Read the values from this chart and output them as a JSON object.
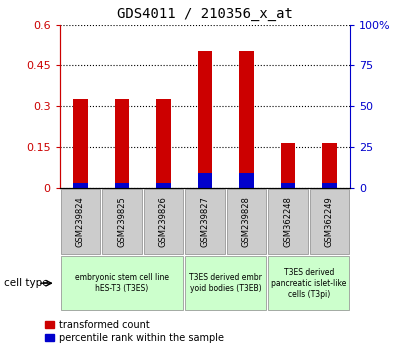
{
  "title": "GDS4011 / 210356_x_at",
  "samples": [
    "GSM239824",
    "GSM239825",
    "GSM239826",
    "GSM239827",
    "GSM239828",
    "GSM362248",
    "GSM362249"
  ],
  "transformed_count": [
    0.325,
    0.325,
    0.325,
    0.505,
    0.505,
    0.165,
    0.165
  ],
  "percentile_rank_pct": [
    3.0,
    3.0,
    3.0,
    9.0,
    9.0,
    3.0,
    3.0
  ],
  "ylim_left": [
    0,
    0.6
  ],
  "ylim_right": [
    0,
    100
  ],
  "yticks_left": [
    0,
    0.15,
    0.3,
    0.45,
    0.6
  ],
  "yticks_right": [
    0,
    25,
    50,
    75,
    100
  ],
  "ytick_labels_left": [
    "0",
    "0.15",
    "0.3",
    "0.45",
    "0.6"
  ],
  "ytick_labels_right": [
    "0",
    "25",
    "50",
    "75",
    "100%"
  ],
  "bar_color_red": "#cc0000",
  "bar_color_blue": "#0000cc",
  "bar_width": 0.35,
  "group_spans": [
    {
      "start": 0,
      "end": 3,
      "label": "embryonic stem cell line\nhES-T3 (T3ES)"
    },
    {
      "start": 3,
      "end": 5,
      "label": "T3ES derived embr\nyoid bodies (T3EB)"
    },
    {
      "start": 5,
      "end": 7,
      "label": "T3ES derived\npancreatic islet-like\ncells (T3pi)"
    }
  ],
  "legend_red_label": "transformed count",
  "legend_blue_label": "percentile rank within the sample",
  "cell_type_label": "cell type"
}
